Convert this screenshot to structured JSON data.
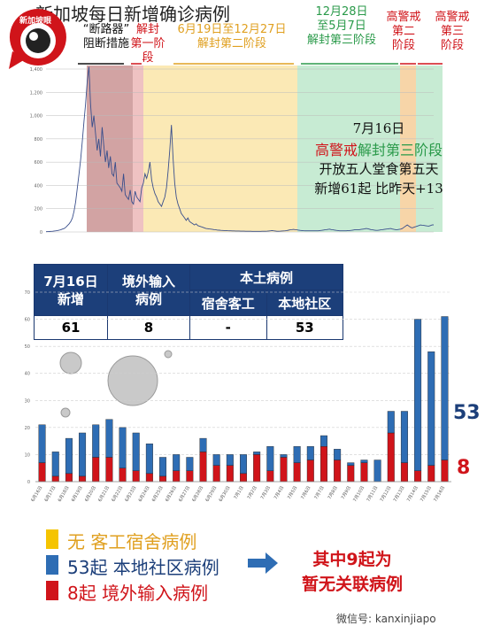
{
  "logo": {
    "text": "新加坡眼"
  },
  "phases": [
    {
      "label": "“断路器”\n阻断措施",
      "color": "#111111"
    },
    {
      "label": "解封\n第一阶段",
      "color": "#d0141a"
    },
    {
      "label": "6月19日至12月27日\n解封第二阶段",
      "color": "#e0a020"
    },
    {
      "label": "12月28日\n至5月7日\n解封第三阶段",
      "color": "#2a9a4a"
    },
    {
      "label": "高警戒\n第二\n阶段",
      "color": "#d0141a"
    },
    {
      "label": "高警戒\n第三\n阶段",
      "color": "#d0141a"
    }
  ],
  "top_chart": {
    "title": "新加坡每日新增确诊病例",
    "ytick_labels": [
      "0",
      "200",
      "400",
      "600",
      "800",
      "1,000",
      "1,200",
      "1,400"
    ],
    "ylim": [
      0,
      1400
    ],
    "annotation": {
      "date": "7月16日",
      "phase_red": "高警戒",
      "phase_green": "解封第三阶段",
      "line3": "开放五人堂食第五天",
      "line4": "新增61起 比昨天+13"
    }
  },
  "table": {
    "h_new": "7月16日\n新增",
    "h_import": "境外输入\n病例",
    "h_local": "本土病例",
    "h_dorm": "宿舍客工",
    "h_comm": "本地社区",
    "v_new": "61",
    "v_import": "8",
    "v_dorm": "-",
    "v_comm": "53"
  },
  "side_numbers": {
    "community": "53",
    "imported": "8"
  },
  "colors": {
    "community": "#2e6db4",
    "imported": "#d0141a",
    "dorm": "#f5c400",
    "navy": "#1c3f7a"
  },
  "chart_data": [
    {
      "type": "line",
      "title": "新加坡每日新增确诊病例",
      "ylim": [
        0,
        1400
      ],
      "series": [
        {
          "values": [
            2,
            3,
            4,
            5,
            6,
            8,
            10,
            12,
            15,
            20,
            25,
            30,
            40,
            55,
            70,
            90,
            120,
            180,
            260,
            380,
            500,
            620,
            780,
            950,
            1100,
            1300,
            1420,
            1100,
            900,
            1000,
            850,
            700,
            800,
            650,
            900,
            750,
            600,
            700,
            550,
            650,
            500,
            480,
            600,
            420,
            400,
            380,
            350,
            500,
            320,
            300,
            280,
            360,
            260,
            240,
            350,
            300,
            280,
            260,
            380,
            420,
            500,
            460,
            520,
            600,
            450,
            380,
            330,
            300,
            260,
            240,
            220,
            260,
            300,
            380,
            520,
            700,
            920,
            640,
            420,
            300,
            240,
            200,
            160,
            140,
            120,
            100,
            120,
            90,
            80,
            70,
            60,
            70,
            55,
            50,
            45,
            40,
            35,
            30,
            28,
            26,
            24,
            22,
            20,
            18,
            16,
            15,
            14,
            13,
            12,
            12,
            11,
            10,
            10,
            9,
            9,
            8,
            8,
            8,
            7,
            7,
            7,
            6,
            6,
            6,
            6,
            5,
            5,
            5,
            5,
            5,
            5,
            6,
            6,
            6,
            7,
            8,
            10,
            12,
            10,
            8,
            6,
            6,
            7,
            8,
            9,
            10,
            12,
            15,
            18,
            20,
            22,
            20,
            18,
            16,
            14,
            12,
            11,
            10,
            10,
            10,
            10,
            10,
            10,
            10,
            10,
            10,
            12,
            14,
            16,
            18,
            20,
            22,
            24,
            20,
            18,
            16,
            14,
            12,
            10,
            10,
            10,
            10,
            10,
            12,
            12,
            14,
            16,
            18,
            20,
            20,
            20,
            22,
            24,
            26,
            30,
            28,
            24,
            20,
            18,
            16,
            14,
            14,
            16,
            18,
            20,
            22,
            24,
            26,
            28,
            30,
            25,
            22,
            20,
            20,
            22,
            24,
            30,
            40,
            50,
            60,
            50,
            40,
            35,
            40,
            45,
            50,
            55,
            60,
            58,
            56,
            54,
            52,
            50,
            55,
            60,
            61
          ]
        }
      ]
    },
    {
      "type": "bar",
      "ylim": [
        0,
        70
      ],
      "ytick_labels": [
        "0",
        "10",
        "20",
        "30",
        "40",
        "50",
        "60",
        "70"
      ],
      "categories": [
        "6月16日",
        "6月17日",
        "6月18日",
        "6月19日",
        "6月20日",
        "6月21日",
        "6月22日",
        "6月23日",
        "6月24日",
        "6月25日",
        "6月26日",
        "6月27日",
        "6月28日",
        "6月29日",
        "6月30日",
        "7月1日",
        "7月2日",
        "7月3日",
        "7月4日",
        "7月5日",
        "7月6日",
        "7月7日",
        "7月8日",
        "7月9日",
        "7月10日",
        "7月11日",
        "7月12日",
        "7月13日",
        "7月14日",
        "7月15日",
        "7月16日"
      ],
      "series": [
        {
          "name": "8起 境外输入病例",
          "values": [
            7,
            2,
            3,
            2,
            9,
            9,
            5,
            4,
            3,
            2,
            4,
            4,
            11,
            6,
            6,
            3,
            10,
            4,
            9,
            7,
            8,
            13,
            8,
            6,
            7,
            0,
            18,
            7,
            4,
            6,
            8
          ]
        },
        {
          "name": "53起 本地社区病例",
          "values": [
            14,
            9,
            13,
            16,
            12,
            14,
            15,
            14,
            11,
            7,
            6,
            5,
            5,
            4,
            4,
            7,
            1,
            9,
            1,
            6,
            5,
            4,
            4,
            1,
            1,
            8,
            8,
            19,
            56,
            42,
            53
          ]
        },
        {
          "name": "无 客工宿舍病例",
          "values": [
            0,
            0,
            0,
            0,
            0,
            0,
            0,
            0,
            0,
            0,
            0,
            0,
            0,
            0,
            0,
            0,
            0,
            0,
            0,
            0,
            0,
            0,
            0,
            0,
            0,
            0,
            0,
            0,
            0,
            0,
            0
          ]
        }
      ]
    }
  ],
  "legend": {
    "dorm": "无  客工宿舍病例",
    "community": "53起 本地社区病例",
    "imported": "8起  境外输入病例"
  },
  "note": "其中9起为\n暂无关联病例",
  "watermark": "微信号: kanxinjiapo"
}
